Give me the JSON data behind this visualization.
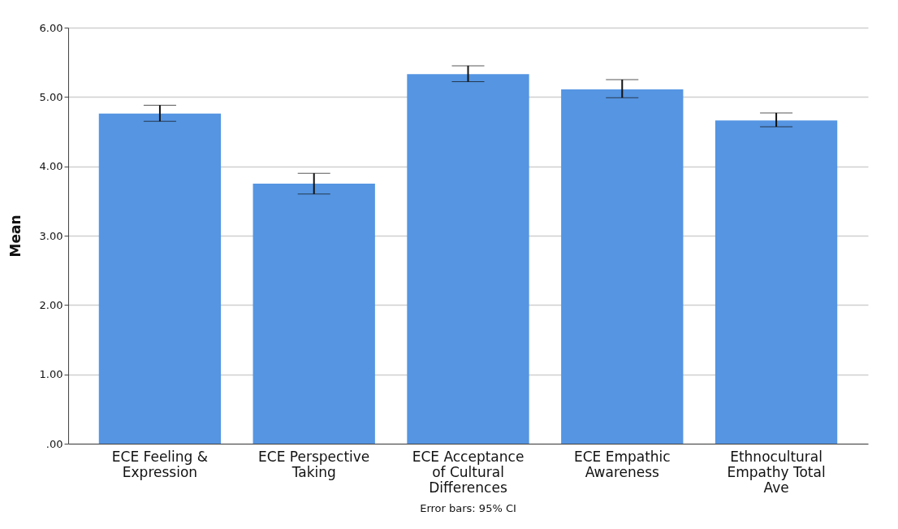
{
  "chart_data": {
    "type": "bar",
    "ylabel": "Mean",
    "categories": [
      "ECE Feeling & Expression",
      "ECE Perspective Taking",
      "ECE Acceptance of Cultural Differences",
      "ECE Empathic Awareness",
      "Ethnocultural Empathy Total Ave"
    ],
    "values": [
      4.76,
      3.75,
      5.33,
      5.11,
      4.66
    ],
    "errors": [
      [
        4.65,
        4.88
      ],
      [
        3.6,
        3.9
      ],
      [
        5.22,
        5.45
      ],
      [
        4.99,
        5.25
      ],
      [
        4.57,
        4.77
      ]
    ],
    "color": "#5595e2",
    "ylim": [
      0,
      6
    ],
    "yticks": [
      {
        "value": 0,
        "label": ".00"
      },
      {
        "value": 1,
        "label": "1.00"
      },
      {
        "value": 2,
        "label": "2.00"
      },
      {
        "value": 3,
        "label": "3.00"
      },
      {
        "value": 4,
        "label": "4.00"
      },
      {
        "value": 5,
        "label": "5.00"
      },
      {
        "value": 6,
        "label": "6.00"
      }
    ],
    "grid": "y",
    "annotations": [
      "Error bars: 95% CI"
    ]
  }
}
